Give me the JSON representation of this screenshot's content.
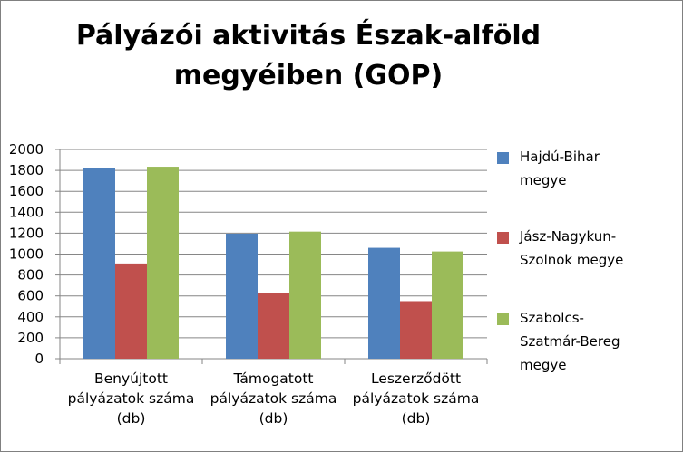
{
  "chart_data": {
    "type": "bar",
    "title_lines": [
      "Pályázói aktivitás Észak-alföld",
      "megyéiben (GOP)"
    ],
    "categories": [
      [
        "Benyújtott",
        "pályázatok száma",
        "(db)"
      ],
      [
        "Támogatott",
        "pályázatok száma",
        "(db)"
      ],
      [
        "Leszerződött",
        "pályázatok száma",
        "(db)"
      ]
    ],
    "series": [
      {
        "name_lines": [
          "Hajdú-Bihar",
          "megye"
        ],
        "color": "#4f81bd",
        "values": [
          1820,
          1195,
          1060
        ]
      },
      {
        "name_lines": [
          "Jász-Nagykun-",
          "Szolnok megye"
        ],
        "color": "#c0504d",
        "values": [
          910,
          630,
          550
        ]
      },
      {
        "name_lines": [
          "Szabolcs-",
          "Szatmár-Bereg",
          "megye"
        ],
        "color": "#9bbb59",
        "values": [
          1835,
          1215,
          1025
        ]
      }
    ],
    "ylim": [
      0,
      2000
    ],
    "yticks": [
      "0",
      "200",
      "400",
      "600",
      "800",
      "1000",
      "1200",
      "1400",
      "1600",
      "1800",
      "2000"
    ],
    "grid": true,
    "legend_position": "right"
  }
}
